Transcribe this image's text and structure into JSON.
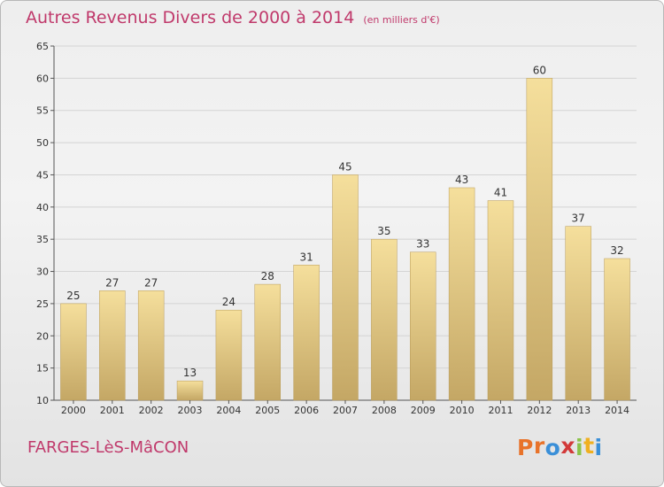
{
  "title": "Autres Revenus Divers de 2000 à 2014",
  "unit": "(en milliers d'€)",
  "commune": "FARGES-LèS-MâCON",
  "logo": {
    "letters": [
      "P",
      "r",
      "o",
      "x",
      "i",
      "t",
      "i"
    ],
    "colors": [
      "#e8732a",
      "#e8732a",
      "#3a8fd8",
      "#d23a3a",
      "#8bc34a",
      "#f0b020",
      "#3a8fd8"
    ]
  },
  "colors": {
    "title": "#c0396b",
    "bar_light": "#f5df9c",
    "bar_dark": "#c4a765"
  },
  "chart_data": {
    "type": "bar",
    "categories": [
      "2000",
      "2001",
      "2002",
      "2003",
      "2004",
      "2005",
      "2006",
      "2007",
      "2008",
      "2009",
      "2010",
      "2011",
      "2012",
      "2013",
      "2014"
    ],
    "values": [
      25,
      27,
      27,
      13,
      24,
      28,
      31,
      45,
      35,
      33,
      43,
      41,
      60,
      37,
      32
    ],
    "ylim": [
      10,
      65
    ],
    "yticks": [
      10,
      15,
      20,
      25,
      30,
      35,
      40,
      45,
      50,
      55,
      60,
      65
    ],
    "grid": true
  }
}
